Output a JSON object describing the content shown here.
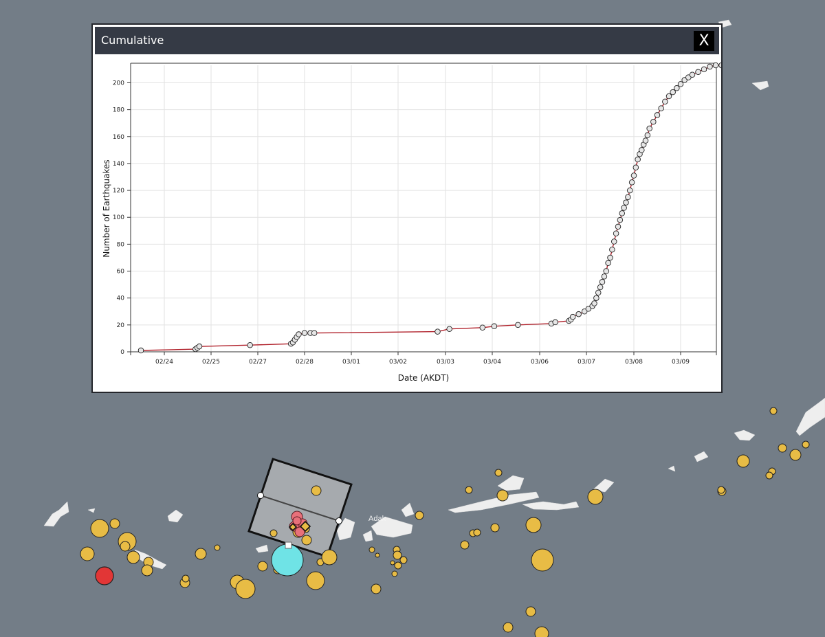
{
  "panel": {
    "title": "Cumulative",
    "close_label": "X"
  },
  "map": {
    "place_label": "Adak",
    "colors": {
      "ocean": "#737d87",
      "land": "#f2f2f2",
      "quake": "#e8bc45",
      "highlight_quake": "#e23636",
      "recent_quake": "#6fe3e6",
      "selection_box": "#c8c8c8"
    }
  },
  "chart_data": {
    "type": "line",
    "title": "",
    "xlabel": "Date (AKDT)",
    "ylabel": "Number of Earthquakes",
    "xticks": [
      "02/24",
      "02/25",
      "02/27",
      "02/28",
      "03/01",
      "03/02",
      "03/03",
      "03/04",
      "03/06",
      "03/07",
      "03/08",
      "03/09"
    ],
    "yticks": [
      0,
      20,
      40,
      60,
      80,
      100,
      120,
      140,
      160,
      180,
      200
    ],
    "ylim": [
      0,
      213
    ],
    "x_range": [
      "02/23 12:00",
      "03/09 21:00"
    ],
    "grid": true,
    "line_color": "#b0202a",
    "marker_color": "#e6e6e6",
    "series": [
      {
        "x": [
          "02/23 12:00",
          "02/24 16:00",
          "02/24 17:00",
          "02/24 18:00",
          "02/26 16:00",
          "02/27 17:00",
          "02/27 18:00",
          "02/27 19:00",
          "02/27 20:00",
          "02/27 21:00",
          "02/28 00:00",
          "02/28 03:00",
          "02/28 05:00",
          "03/02 20:00",
          "03/03 02:00",
          "03/03 19:00",
          "03/04 02:00",
          "03/05 02:00",
          "03/06 06:00",
          "03/06 08:00",
          "03/06 15:00",
          "03/06 16:00",
          "03/06 17:00",
          "03/06 20:00",
          "03/06 23:00",
          "03/07 01:00",
          "03/07 03:00",
          "03/07 04:00",
          "03/07 05:00",
          "03/07 06:00",
          "03/07 07:00",
          "03/07 08:00",
          "03/07 09:00",
          "03/07 10:00",
          "03/07 11:00",
          "03/07 12:00",
          "03/07 13:00",
          "03/07 14:00",
          "03/07 15:00",
          "03/07 16:00",
          "03/07 17:00",
          "03/07 18:00",
          "03/07 19:00",
          "03/07 20:00",
          "03/07 21:00",
          "03/07 22:00",
          "03/07 23:00",
          "03/08 00:00",
          "03/08 01:00",
          "03/08 02:00",
          "03/08 03:00",
          "03/08 04:00",
          "03/08 05:00",
          "03/08 06:00",
          "03/08 07:00",
          "03/08 08:00",
          "03/08 10:00",
          "03/08 12:00",
          "03/08 14:00",
          "03/08 16:00",
          "03/08 18:00",
          "03/08 20:00",
          "03/08 22:00",
          "03/09 00:00",
          "03/09 02:00",
          "03/09 04:00",
          "03/09 06:00",
          "03/09 09:00",
          "03/09 12:00",
          "03/09 15:00",
          "03/09 18:00",
          "03/09 21:00"
        ],
        "y": [
          1,
          2,
          3,
          4,
          5,
          6,
          7,
          9,
          11,
          13,
          14,
          14,
          14,
          15,
          17,
          18,
          19,
          20,
          21,
          22,
          23,
          24,
          26,
          28,
          30,
          32,
          34,
          36,
          40,
          44,
          48,
          52,
          56,
          60,
          66,
          70,
          76,
          82,
          88,
          93,
          98,
          103,
          107,
          111,
          115,
          120,
          126,
          131,
          137,
          143,
          147,
          150,
          154,
          157,
          161,
          166,
          171,
          176,
          181,
          186,
          190,
          193,
          196,
          199,
          202,
          204,
          206,
          208,
          210,
          212,
          213,
          213
        ]
      }
    ]
  }
}
